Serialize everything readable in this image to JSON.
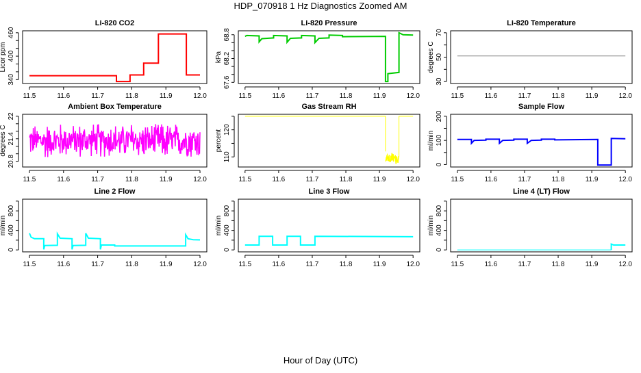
{
  "title": "HDP_070918  1 Hz Diagnostics Zoomed AM",
  "xlabel": "Hour of Day (UTC)",
  "chart_data": [
    {
      "type": "line",
      "title": "Li-820 CO2",
      "ylabel": "Licor ppm",
      "xlim": [
        11.5,
        12.0
      ],
      "xticks": [
        11.5,
        11.6,
        11.7,
        11.8,
        11.9,
        12.0
      ],
      "ylim": [
        335,
        460
      ],
      "yticks": [
        340,
        360,
        380,
        400,
        420,
        440,
        460
      ],
      "ylabels": [
        340,
        400,
        460
      ],
      "series": [
        {
          "color": "#ff0000",
          "width": 2,
          "points": [
            [
              11.5,
              350
            ],
            [
              11.755,
              350
            ],
            [
              11.755,
              335
            ],
            [
              11.795,
              335
            ],
            [
              11.795,
              352
            ],
            [
              11.835,
              352
            ],
            [
              11.835,
              382
            ],
            [
              11.878,
              382
            ],
            [
              11.878,
              457
            ],
            [
              11.96,
              457
            ],
            [
              11.96,
              352
            ],
            [
              12.0,
              352
            ]
          ]
        }
      ]
    },
    {
      "type": "line",
      "title": "Li-820 Pressure",
      "ylabel": "kPa",
      "xlim": [
        11.5,
        12.0
      ],
      "xticks": [
        11.5,
        11.6,
        11.7,
        11.8,
        11.9,
        12.0
      ],
      "ylim": [
        67.62,
        68.85
      ],
      "yticks": [
        67.6,
        67.8,
        68.0,
        68.2,
        68.4,
        68.6,
        68.8
      ],
      "ylabels": [
        67.6,
        68.2,
        68.8
      ],
      "series": [
        {
          "color": "#00cc00",
          "width": 2,
          "points": [
            [
              11.5,
              68.76
            ],
            [
              11.505,
              68.78
            ],
            [
              11.542,
              68.77
            ],
            [
              11.542,
              68.62
            ],
            [
              11.55,
              68.7
            ],
            [
              11.585,
              68.72
            ],
            [
              11.585,
              68.78
            ],
            [
              11.625,
              68.77
            ],
            [
              11.625,
              68.61
            ],
            [
              11.635,
              68.71
            ],
            [
              11.668,
              68.72
            ],
            [
              11.668,
              68.78
            ],
            [
              11.708,
              68.77
            ],
            [
              11.708,
              68.6
            ],
            [
              11.72,
              68.71
            ],
            [
              11.75,
              68.72
            ],
            [
              11.75,
              68.79
            ],
            [
              11.79,
              68.78
            ],
            [
              11.79,
              68.75
            ],
            [
              11.918,
              68.76
            ],
            [
              11.918,
              67.62
            ],
            [
              11.925,
              67.62
            ],
            [
              11.925,
              67.82
            ],
            [
              11.958,
              67.85
            ],
            [
              11.958,
              68.85
            ],
            [
              11.97,
              68.8
            ],
            [
              12.0,
              68.79
            ]
          ]
        }
      ]
    },
    {
      "type": "line",
      "title": "Li-820 Temperature",
      "ylabel": "degrees C",
      "xlim": [
        11.5,
        12.0
      ],
      "xticks": [
        11.5,
        11.6,
        11.7,
        11.8,
        11.9,
        12.0
      ],
      "ylim": [
        30,
        70
      ],
      "yticks": [
        30,
        40,
        50,
        60,
        70
      ],
      "ylabels": [
        30,
        50,
        70
      ],
      "series": [
        {
          "color": "#808080",
          "width": 1,
          "points": [
            [
              11.5,
              51
            ],
            [
              12.0,
              51
            ]
          ]
        }
      ]
    },
    {
      "type": "line",
      "title": "Ambient Box Temperature",
      "ylabel": "degrees C",
      "xlim": [
        11.5,
        12.0
      ],
      "xticks": [
        11.5,
        11.6,
        11.7,
        11.8,
        11.9,
        12.0
      ],
      "ylim": [
        20.7,
        22.0
      ],
      "yticks": [
        20.8,
        21.0,
        21.2,
        21.4,
        21.6,
        21.8,
        22.0
      ],
      "ylabels": [
        20.8,
        21.4,
        22.0
      ],
      "series": [
        {
          "color": "#ff00ff",
          "width": 1.5,
          "noise": {
            "x0": 11.5,
            "x1": 12.0,
            "mean": 21.35,
            "amp": 0.45,
            "n": 400
          }
        }
      ]
    },
    {
      "type": "line",
      "title": "Gas Stream RH",
      "ylabel": "percent",
      "xlim": [
        11.5,
        12.0
      ],
      "xticks": [
        11.5,
        11.6,
        11.7,
        11.8,
        11.9,
        12.0
      ],
      "ylim": [
        107,
        125
      ],
      "yticks": [
        110,
        115,
        120,
        125
      ],
      "ylabels": [
        110,
        120
      ],
      "series": [
        {
          "color": "#ffff00",
          "width": 1,
          "points": [
            [
              11.5,
              125
            ],
            [
              11.918,
              125
            ],
            [
              11.918,
              112
            ]
          ]
        },
        {
          "color": "#ffff00",
          "width": 1.5,
          "noise": {
            "x0": 11.918,
            "x1": 11.958,
            "mean": 109.5,
            "amp": 2.2,
            "n": 40
          }
        },
        {
          "color": "#ffff00",
          "width": 1,
          "points": [
            [
              11.958,
              110
            ],
            [
              11.958,
              125
            ],
            [
              12.0,
              125
            ]
          ]
        }
      ]
    },
    {
      "type": "line",
      "title": "Sample Flow",
      "ylabel": "ml/min",
      "xlim": [
        11.5,
        12.0
      ],
      "xticks": [
        11.5,
        11.6,
        11.7,
        11.8,
        11.9,
        12.0
      ],
      "ylim": [
        -2,
        200
      ],
      "yticks": [
        0,
        50,
        100,
        150,
        200
      ],
      "ylabels": [
        0,
        100,
        200
      ],
      "series": [
        {
          "color": "#0000ff",
          "width": 2,
          "points": [
            [
              11.5,
              104
            ],
            [
              11.542,
              104
            ],
            [
              11.542,
              88
            ],
            [
              11.55,
              100
            ],
            [
              11.585,
              101
            ],
            [
              11.585,
              105
            ],
            [
              11.625,
              105
            ],
            [
              11.625,
              88
            ],
            [
              11.635,
              100
            ],
            [
              11.668,
              101
            ],
            [
              11.668,
              105
            ],
            [
              11.708,
              105
            ],
            [
              11.708,
              88
            ],
            [
              11.72,
              100
            ],
            [
              11.75,
              101
            ],
            [
              11.75,
              105
            ],
            [
              11.79,
              105
            ],
            [
              11.79,
              102
            ],
            [
              11.918,
              104
            ],
            [
              11.918,
              -2
            ],
            [
              11.958,
              -2
            ],
            [
              11.958,
              108
            ],
            [
              12.0,
              107
            ]
          ]
        }
      ]
    },
    {
      "type": "line",
      "title": "Line 2 Flow",
      "ylabel": "ml/min",
      "xlim": [
        11.5,
        12.0
      ],
      "xticks": [
        11.5,
        11.6,
        11.7,
        11.8,
        11.9,
        12.0
      ],
      "ylim": [
        0,
        1000
      ],
      "yticks": [
        0,
        200,
        400,
        600,
        800,
        1000
      ],
      "ylabels": [
        0,
        400,
        800
      ],
      "series": [
        {
          "color": "#00ffff",
          "width": 2,
          "points": [
            [
              11.5,
              340
            ],
            [
              11.505,
              260
            ],
            [
              11.515,
              230
            ],
            [
              11.542,
              230
            ],
            [
              11.542,
              10
            ],
            [
              11.545,
              90
            ],
            [
              11.582,
              95
            ],
            [
              11.582,
              330
            ],
            [
              11.59,
              240
            ],
            [
              11.625,
              230
            ],
            [
              11.625,
              10
            ],
            [
              11.628,
              90
            ],
            [
              11.665,
              95
            ],
            [
              11.665,
              340
            ],
            [
              11.673,
              240
            ],
            [
              11.708,
              230
            ],
            [
              11.708,
              10
            ],
            [
              11.711,
              100
            ],
            [
              11.75,
              100
            ],
            [
              11.75,
              80
            ],
            [
              11.958,
              80
            ],
            [
              11.958,
              310
            ],
            [
              11.965,
              230
            ],
            [
              11.98,
              210
            ],
            [
              12.0,
              205
            ]
          ]
        }
      ]
    },
    {
      "type": "line",
      "title": "Line 3 Flow",
      "ylabel": "ml/min",
      "xlim": [
        11.5,
        12.0
      ],
      "xticks": [
        11.5,
        11.6,
        11.7,
        11.8,
        11.9,
        12.0
      ],
      "ylim": [
        0,
        1000
      ],
      "yticks": [
        0,
        200,
        400,
        600,
        800,
        1000
      ],
      "ylabels": [
        0,
        400,
        800
      ],
      "series": [
        {
          "color": "#00ffff",
          "width": 2,
          "points": [
            [
              11.5,
              100
            ],
            [
              11.542,
              100
            ],
            [
              11.542,
              280
            ],
            [
              11.582,
              280
            ],
            [
              11.582,
              100
            ],
            [
              11.625,
              100
            ],
            [
              11.625,
              280
            ],
            [
              11.665,
              280
            ],
            [
              11.665,
              100
            ],
            [
              11.708,
              100
            ],
            [
              11.708,
              280
            ],
            [
              12.0,
              270
            ]
          ]
        }
      ]
    },
    {
      "type": "line",
      "title": "Line 4 (LT) Flow",
      "ylabel": "ml/min",
      "xlim": [
        11.5,
        12.0
      ],
      "xticks": [
        11.5,
        11.6,
        11.7,
        11.8,
        11.9,
        12.0
      ],
      "ylim": [
        0,
        1000
      ],
      "yticks": [
        0,
        200,
        400,
        600,
        800,
        1000
      ],
      "ylabels": [
        0,
        400,
        800
      ],
      "series": [
        {
          "color": "#00ffff",
          "width": 1,
          "points": [
            [
              11.5,
              0
            ],
            [
              11.958,
              0
            ]
          ]
        },
        {
          "color": "#00ffff",
          "width": 2,
          "points": [
            [
              11.958,
              0
            ],
            [
              11.958,
              120
            ],
            [
              11.965,
              100
            ],
            [
              12.0,
              100
            ]
          ]
        }
      ]
    }
  ]
}
